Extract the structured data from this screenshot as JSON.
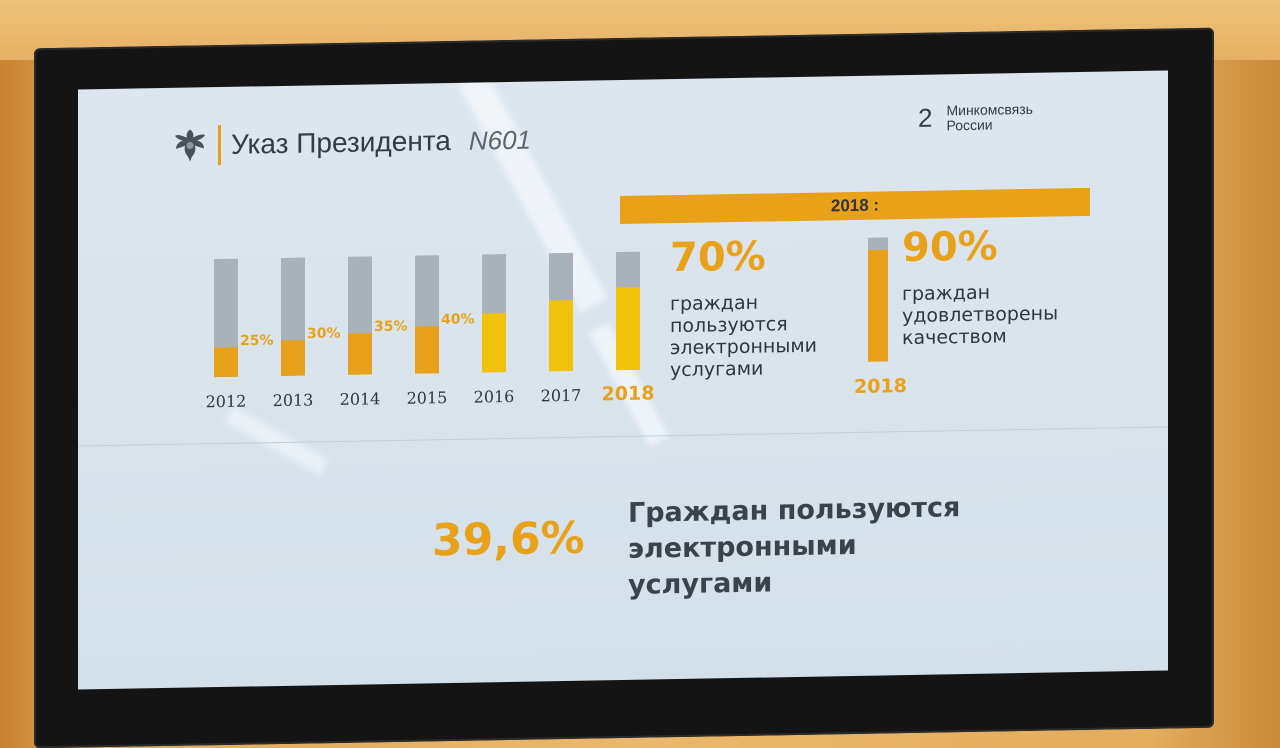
{
  "header": {
    "title": "Указ Президента",
    "number": "N601"
  },
  "brand": {
    "number": "2",
    "line1": "Минкомсвязь",
    "line2": "России"
  },
  "banner": {
    "label": "2018 :"
  },
  "chart_data": {
    "type": "bar",
    "categories": [
      "2012",
      "2013",
      "2014",
      "2015",
      "2016",
      "2017",
      "2018"
    ],
    "values": [
      25,
      30,
      35,
      40,
      50,
      60,
      70
    ],
    "data_labels": [
      "25%",
      "30%",
      "35%",
      "40%",
      "",
      "",
      ""
    ],
    "highlight_category": "2018",
    "ylim": [
      0,
      100
    ],
    "colors": {
      "fill_past": "#e8a11a",
      "fill_future": "#f0c20a",
      "track": "#a9b1b9"
    }
  },
  "gauge_data": {
    "type": "bar",
    "categories": [
      "2018"
    ],
    "values": [
      90
    ],
    "ylim": [
      0,
      100
    ]
  },
  "stat1": {
    "value": "70%",
    "lines": [
      "граждан",
      "пользуются",
      "электронными",
      "услугами"
    ]
  },
  "stat2": {
    "value": "90%",
    "lines": [
      "граждан",
      "удовлетворены",
      "качеством"
    ],
    "year": "2018"
  },
  "bottom": {
    "value": "39,6%",
    "lines": [
      "Граждан пользуются",
      "электронными",
      "услугами"
    ]
  },
  "colors": {
    "accent": "#e9a11a",
    "text": "#2f3640",
    "screen_bg": "#dde6ee",
    "frame": "#141414"
  }
}
